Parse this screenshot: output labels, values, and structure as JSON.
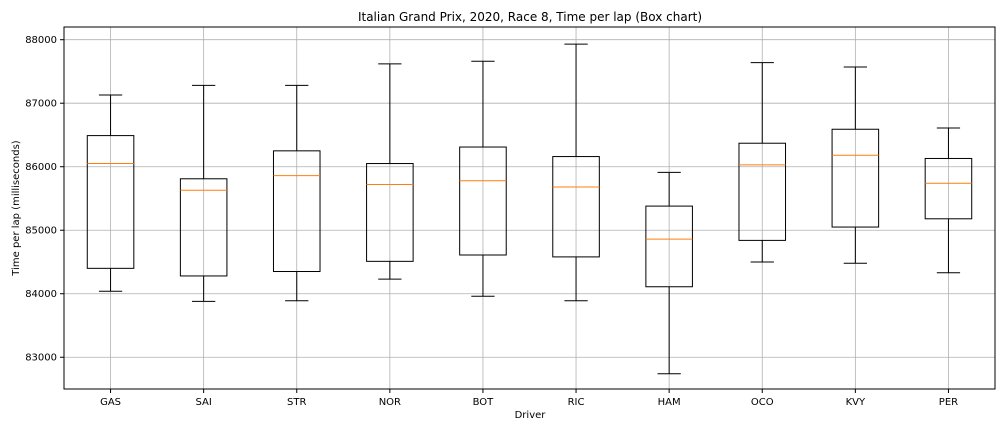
{
  "chart_data": {
    "type": "box",
    "title": "Italian Grand Prix, 2020, Race 8, Time per lap (Box chart)",
    "xlabel": "Driver",
    "ylabel": "Time per lap (milliseconds)",
    "ylim": [
      82500,
      88200
    ],
    "yticks": [
      83000,
      84000,
      85000,
      86000,
      87000,
      88000
    ],
    "grid": true,
    "colors": {
      "box": "#000000",
      "median": "#ff7f0e",
      "grid": "#b0b0b0"
    },
    "categories": [
      "GAS",
      "SAI",
      "STR",
      "NOR",
      "BOT",
      "RIC",
      "HAM",
      "OCO",
      "KVY",
      "PER"
    ],
    "boxes": [
      {
        "min": 84040,
        "q1": 84400,
        "median": 86050,
        "q3": 86490,
        "max": 87130
      },
      {
        "min": 83880,
        "q1": 84280,
        "median": 85630,
        "q3": 85810,
        "max": 87280
      },
      {
        "min": 83890,
        "q1": 84350,
        "median": 85860,
        "q3": 86250,
        "max": 87280
      },
      {
        "min": 84230,
        "q1": 84510,
        "median": 85720,
        "q3": 86050,
        "max": 87620
      },
      {
        "min": 83960,
        "q1": 84610,
        "median": 85780,
        "q3": 86310,
        "max": 87660
      },
      {
        "min": 83890,
        "q1": 84580,
        "median": 85680,
        "q3": 86160,
        "max": 87930
      },
      {
        "min": 82740,
        "q1": 84110,
        "median": 84860,
        "q3": 85380,
        "max": 85910
      },
      {
        "min": 84500,
        "q1": 84840,
        "median": 86030,
        "q3": 86370,
        "max": 87640
      },
      {
        "min": 84480,
        "q1": 85050,
        "median": 86180,
        "q3": 86590,
        "max": 87570
      },
      {
        "min": 84330,
        "q1": 85180,
        "median": 85740,
        "q3": 86130,
        "max": 86610
      }
    ]
  }
}
